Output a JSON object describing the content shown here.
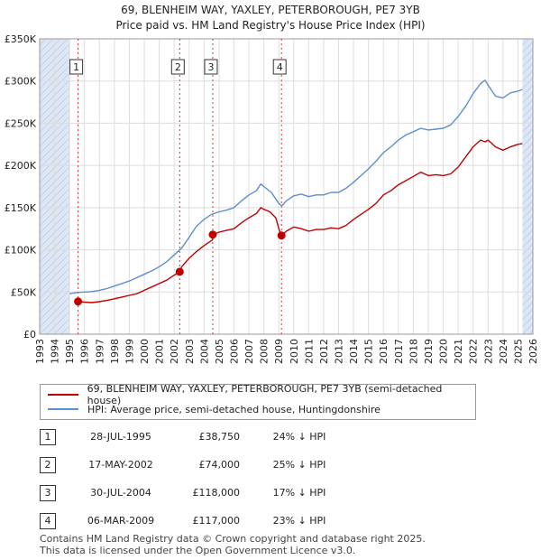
{
  "header": {
    "title_line1": "69, BLENHEIM WAY, YAXLEY, PETERBOROUGH, PE7 3YB",
    "title_line2": "Price paid vs. HM Land Registry's House Price Index (HPI)"
  },
  "legend": {
    "property_label": "69, BLENHEIM WAY, YAXLEY, PETERBOROUGH, PE7 3YB (semi-detached house)",
    "hpi_label": "HPI: Average price, semi-detached house, Huntingdonshire"
  },
  "transactions": [
    {
      "num": "1",
      "date": "28-JUL-1995",
      "price": "£38,750",
      "hpi": "24% ↓ HPI"
    },
    {
      "num": "2",
      "date": "17-MAY-2002",
      "price": "£74,000",
      "hpi": "25% ↓ HPI"
    },
    {
      "num": "3",
      "date": "30-JUL-2004",
      "price": "£118,000",
      "hpi": "17% ↓ HPI"
    },
    {
      "num": "4",
      "date": "06-MAR-2009",
      "price": "£117,000",
      "hpi": "23% ↓ HPI"
    }
  ],
  "footer": {
    "line1": "Contains HM Land Registry data © Crown copyright and database right 2025.",
    "line2": "This data is licensed under the Open Government Licence v3.0."
  },
  "colors": {
    "property": "#c00000",
    "hpi": "#5b8fd0",
    "grid": "#dddddd",
    "shade": "#dce6f5",
    "marker_line": "#cc3333"
  },
  "chart_data": {
    "type": "line",
    "title": "Price paid vs. HM Land Registry's House Price Index (HPI)",
    "xlabel": "",
    "ylabel": "",
    "xlim": [
      1993,
      2026
    ],
    "ylim": [
      0,
      350000
    ],
    "x_ticks": [
      1993,
      1994,
      1995,
      1996,
      1997,
      1998,
      1999,
      2000,
      2001,
      2002,
      2003,
      2004,
      2005,
      2006,
      2007,
      2008,
      2009,
      2010,
      2011,
      2012,
      2013,
      2014,
      2015,
      2016,
      2017,
      2018,
      2019,
      2020,
      2021,
      2022,
      2023,
      2024,
      2025,
      2026
    ],
    "y_ticks": [
      0,
      50000,
      100000,
      150000,
      200000,
      250000,
      300000,
      350000
    ],
    "y_tick_labels": [
      "£0",
      "£50K",
      "£100K",
      "£150K",
      "£200K",
      "£250K",
      "£300K",
      "£350K"
    ],
    "data_range": [
      1995.0,
      2025.3
    ],
    "series": [
      {
        "name": "69, BLENHEIM WAY, YAXLEY, PETERBOROUGH, PE7 3YB (semi-detached house)",
        "color": "#c00000",
        "x": [
          1995.57,
          1996.0,
          1996.5,
          1997.0,
          1997.5,
          1998.0,
          1998.5,
          1999.0,
          1999.5,
          2000.0,
          2000.5,
          2001.0,
          2001.5,
          2002.0,
          2002.37,
          2002.5,
          2003.0,
          2003.5,
          2004.0,
          2004.57,
          2004.6,
          2005.0,
          2005.5,
          2006.0,
          2006.5,
          2007.0,
          2007.5,
          2007.8,
          2008.0,
          2008.4,
          2008.8,
          2009.0,
          2009.17,
          2009.5,
          2010.0,
          2010.5,
          2011.0,
          2011.5,
          2012.0,
          2012.5,
          2013.0,
          2013.5,
          2014.0,
          2014.5,
          2015.0,
          2015.5,
          2016.0,
          2016.5,
          2017.0,
          2017.5,
          2018.0,
          2018.5,
          2019.0,
          2019.5,
          2020.0,
          2020.5,
          2021.0,
          2021.5,
          2022.0,
          2022.5,
          2022.8,
          2023.0,
          2023.5,
          2024.0,
          2024.5,
          2025.0,
          2025.3
        ],
        "values": [
          38750,
          38000,
          37500,
          38500,
          40000,
          42000,
          44000,
          46000,
          48000,
          52000,
          56000,
          60000,
          64000,
          70000,
          74000,
          80000,
          90000,
          98000,
          105000,
          112000,
          118000,
          121000,
          123000,
          125000,
          132000,
          138000,
          143000,
          150000,
          148000,
          145000,
          138000,
          125000,
          117000,
          122000,
          127000,
          125000,
          122000,
          124000,
          124000,
          126000,
          125000,
          129000,
          136000,
          142000,
          148000,
          155000,
          165000,
          170000,
          177000,
          182000,
          187000,
          192000,
          188000,
          189000,
          188000,
          190000,
          198000,
          210000,
          222000,
          230000,
          228000,
          230000,
          222000,
          218000,
          222000,
          225000,
          226000
        ]
      },
      {
        "name": "HPI: Average price, semi-detached house, Huntingdonshire",
        "color": "#5b8fd0",
        "x": [
          1995.0,
          1995.5,
          1996.0,
          1996.5,
          1997.0,
          1997.5,
          1998.0,
          1998.5,
          1999.0,
          1999.5,
          2000.0,
          2000.5,
          2001.0,
          2001.5,
          2002.0,
          2002.5,
          2003.0,
          2003.5,
          2004.0,
          2004.5,
          2005.0,
          2005.5,
          2006.0,
          2006.5,
          2007.0,
          2007.5,
          2007.8,
          2008.0,
          2008.5,
          2009.0,
          2009.2,
          2009.5,
          2010.0,
          2010.5,
          2011.0,
          2011.5,
          2012.0,
          2012.5,
          2013.0,
          2013.5,
          2014.0,
          2014.5,
          2015.0,
          2015.5,
          2016.0,
          2016.5,
          2017.0,
          2017.5,
          2018.0,
          2018.5,
          2019.0,
          2019.5,
          2020.0,
          2020.5,
          2021.0,
          2021.5,
          2022.0,
          2022.5,
          2022.8,
          2023.0,
          2023.5,
          2024.0,
          2024.5,
          2025.0,
          2025.3
        ],
        "values": [
          48000,
          49500,
          50000,
          50500,
          52000,
          54000,
          57000,
          60000,
          63000,
          67000,
          71000,
          75000,
          80000,
          86000,
          94000,
          102000,
          115000,
          128000,
          136000,
          142000,
          145000,
          147000,
          150000,
          158000,
          165000,
          170000,
          178000,
          175000,
          168000,
          155000,
          152000,
          158000,
          164000,
          166000,
          163000,
          165000,
          165000,
          168000,
          168000,
          173000,
          180000,
          188000,
          196000,
          205000,
          215000,
          222000,
          230000,
          236000,
          240000,
          244000,
          242000,
          243000,
          244000,
          248000,
          258000,
          270000,
          285000,
          297000,
          301000,
          295000,
          282000,
          280000,
          286000,
          288000,
          290000
        ]
      }
    ],
    "sales": [
      {
        "label": "1",
        "x": 1995.57,
        "price": 38750
      },
      {
        "label": "2",
        "x": 2002.37,
        "price": 74000
      },
      {
        "label": "3",
        "x": 2004.58,
        "price": 118000
      },
      {
        "label": "4",
        "x": 2009.18,
        "price": 117000
      }
    ]
  }
}
